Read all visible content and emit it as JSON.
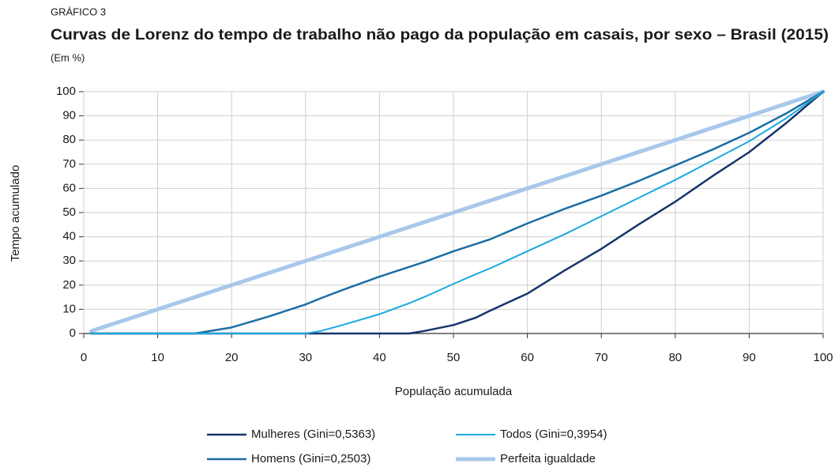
{
  "chart_data": {
    "type": "line",
    "label": "GRÁFICO 3",
    "title": "Curvas de Lorenz do tempo de trabalho não pago da população em casais, por sexo – Brasil (2015)",
    "subtitle": "(Em %)",
    "x_label": "População acumulada",
    "y_label": "Tempo acumulado",
    "x": [
      1,
      5,
      10,
      15,
      16,
      20,
      25,
      30,
      32,
      35,
      40,
      44,
      46,
      50,
      53,
      55,
      60,
      65,
      70,
      75,
      80,
      85,
      90,
      95,
      100
    ],
    "series": [
      {
        "name": "Mulheres (Gini=0,5363)",
        "color": "#16356b",
        "width": 2.5,
        "values": [
          0,
          0,
          0,
          0,
          0,
          0,
          0,
          0,
          0,
          0,
          0,
          0,
          1,
          3.5,
          6.5,
          9.5,
          16.5,
          26,
          35,
          45,
          54.5,
          65,
          75,
          87,
          100
        ]
      },
      {
        "name": "Todos (Gini=0,3954)",
        "color": "#1ba9de",
        "width": 2,
        "values": [
          0,
          0,
          0,
          0,
          0,
          0,
          0,
          0,
          1,
          3.5,
          8,
          12.5,
          15,
          20.5,
          24.5,
          27,
          34,
          41,
          48.5,
          56,
          63.5,
          71.5,
          79.5,
          89,
          100
        ]
      },
      {
        "name": "Homens (Gini=0,2503)",
        "color": "#1c6ea4",
        "width": 2.5,
        "values": [
          0,
          0,
          0,
          0,
          0.5,
          2.5,
          7,
          12,
          14.5,
          18,
          23.5,
          27.5,
          29.5,
          34,
          37,
          39,
          45.5,
          51.5,
          57,
          63,
          69.5,
          76,
          83,
          91,
          100
        ]
      },
      {
        "name": "Perfeita igualdade",
        "color": "#a7c8ea",
        "width": 5,
        "values": [
          1,
          5,
          10,
          15,
          16,
          20,
          25,
          30,
          32,
          35,
          40,
          44,
          46,
          50,
          53,
          55,
          60,
          65,
          70,
          75,
          80,
          85,
          90,
          95,
          100
        ]
      }
    ],
    "xlim": [
      0,
      100
    ],
    "xticks": [
      0,
      10,
      20,
      30,
      40,
      50,
      60,
      70,
      80,
      90,
      100
    ],
    "ylim": [
      0,
      100
    ],
    "yticks": [
      0,
      10,
      20,
      30,
      40,
      50,
      60,
      70,
      80,
      90,
      100
    ],
    "grid": true,
    "legend": "bottom"
  }
}
